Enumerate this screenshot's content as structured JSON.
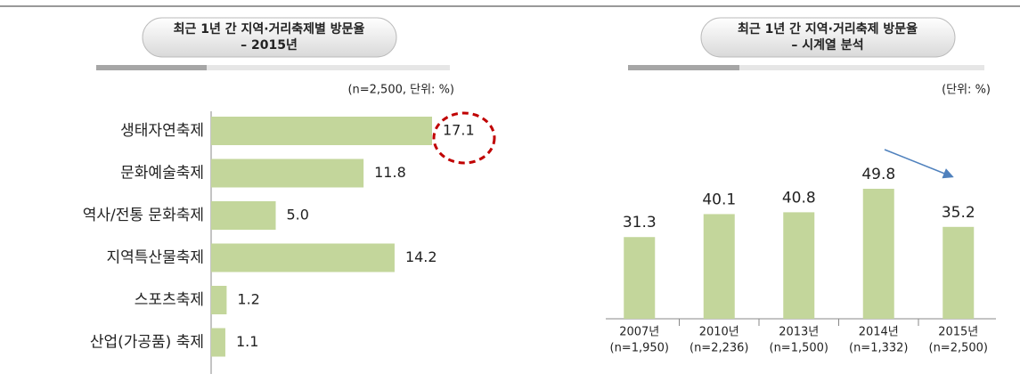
{
  "chart_data": [
    {
      "type": "hbar",
      "title": "최근 1년 간 지역·거리축제별 방문율",
      "subtitle": "– 2015년",
      "note": "(n=2,500, 단위: %)",
      "categories": [
        "생태자연축제",
        "문화예술축제",
        "역사/전통 문화축제",
        "지역특산물축제",
        "스포츠축제",
        "산업(가공품) 축제"
      ],
      "values": [
        17.1,
        11.8,
        5.0,
        14.2,
        1.2,
        1.1
      ],
      "value_labels": [
        "17.1",
        "11.8",
        "5.0",
        "14.2",
        "1.2",
        "1.1"
      ],
      "color": "#c3d69b"
    },
    {
      "type": "bar",
      "title": "최근 1년 간 지역·거리축제 방문율",
      "subtitle": "– 시계열 분석",
      "note": "(단위: %)",
      "categories": [
        "2007년",
        "2010년",
        "2013년",
        "2014년",
        "2015년"
      ],
      "sample_sizes": [
        "(n=1,950)",
        "(n=2,236)",
        "(n=1,500)",
        "(n=1,332)",
        "(n=2,500)"
      ],
      "values": [
        31.3,
        40.1,
        40.8,
        49.8,
        35.2
      ],
      "color": "#c3d69b"
    }
  ]
}
